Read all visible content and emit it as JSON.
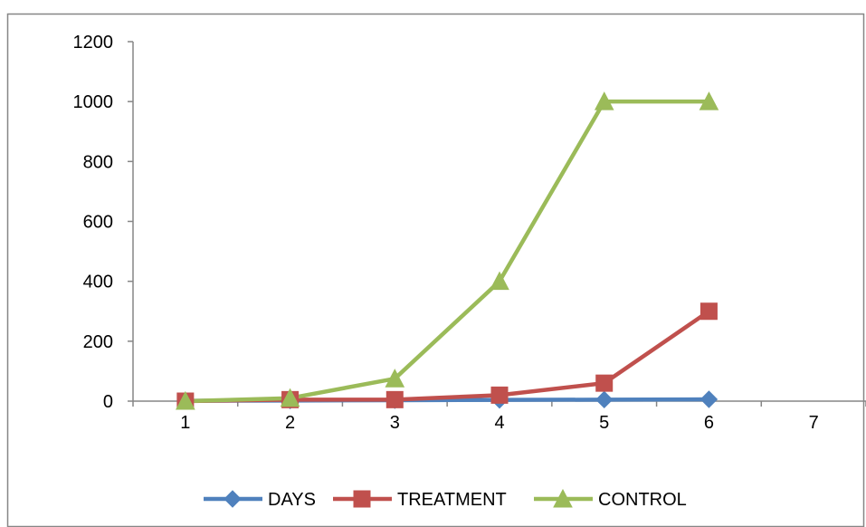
{
  "chart_data": {
    "type": "line",
    "x": [
      1,
      2,
      3,
      4,
      5,
      6
    ],
    "xticks": [
      "1",
      "2",
      "3",
      "4",
      "5",
      "6",
      "7"
    ],
    "xlim": [
      0.5,
      7.5
    ],
    "yticks": [
      "0",
      "200",
      "400",
      "600",
      "800",
      "1000",
      "1200"
    ],
    "ylim": [
      0,
      1200
    ],
    "grid": false,
    "legend_position": "bottom",
    "title": "",
    "xlabel": "",
    "ylabel": "",
    "series": [
      {
        "name": "DAYS",
        "values": [
          1,
          2,
          3,
          4,
          5,
          6
        ],
        "color": "#4F81BD",
        "marker": "diamond"
      },
      {
        "name": "TREATMENT",
        "values": [
          0,
          5,
          5,
          20,
          60,
          300
        ],
        "color": "#C0504D",
        "marker": "square"
      },
      {
        "name": "CONTROL",
        "values": [
          0,
          10,
          75,
          400,
          1000,
          1000
        ],
        "color": "#9BBB59",
        "marker": "triangle"
      }
    ]
  }
}
